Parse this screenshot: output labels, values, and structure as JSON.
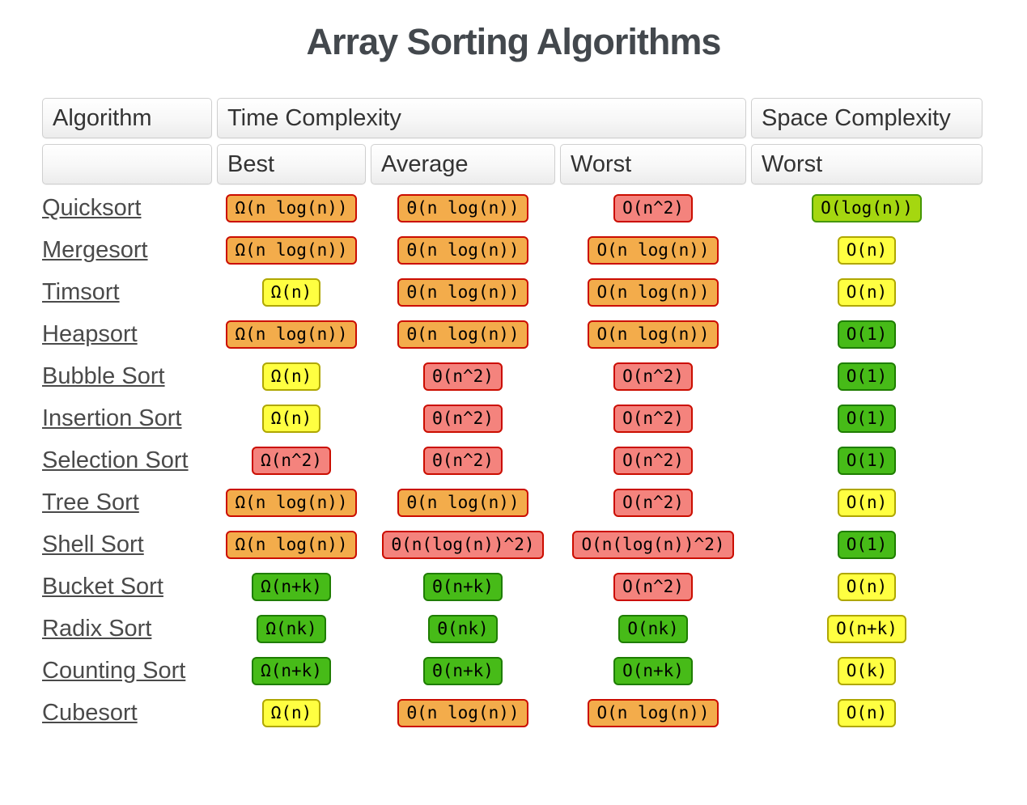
{
  "page": {
    "title": "Array Sorting Algorithms",
    "background": "#ffffff",
    "title_color": "#43484d"
  },
  "legend_colors": {
    "excellent": {
      "bg": "#47BB18",
      "border": "#1E7D00"
    },
    "good": {
      "bg": "#A5D710",
      "border": "#459704"
    },
    "fair": {
      "bg": "#FFFF41",
      "border": "#AFA700"
    },
    "bad": {
      "bg": "#F3AC4B",
      "border": "#CB0D00"
    },
    "horrible": {
      "bg": "#F4837D",
      "border": "#CB0D00"
    }
  },
  "table": {
    "headers": {
      "algorithm": "Algorithm",
      "time_complexity": "Time Complexity",
      "space_complexity": "Space Complexity",
      "best": "Best",
      "average": "Average",
      "worst": "Worst",
      "space_worst": "Worst"
    },
    "rows": [
      {
        "name": "Quicksort",
        "best": {
          "text": "Ω(n log(n))",
          "level": "bad"
        },
        "average": {
          "text": "Θ(n log(n))",
          "level": "bad"
        },
        "worst": {
          "text": "O(n^2)",
          "level": "horrible"
        },
        "space": {
          "text": "O(log(n))",
          "level": "good"
        }
      },
      {
        "name": "Mergesort",
        "best": {
          "text": "Ω(n log(n))",
          "level": "bad"
        },
        "average": {
          "text": "Θ(n log(n))",
          "level": "bad"
        },
        "worst": {
          "text": "O(n log(n))",
          "level": "bad"
        },
        "space": {
          "text": "O(n)",
          "level": "fair"
        }
      },
      {
        "name": "Timsort",
        "best": {
          "text": "Ω(n)",
          "level": "fair"
        },
        "average": {
          "text": "Θ(n log(n))",
          "level": "bad"
        },
        "worst": {
          "text": "O(n log(n))",
          "level": "bad"
        },
        "space": {
          "text": "O(n)",
          "level": "fair"
        }
      },
      {
        "name": "Heapsort",
        "best": {
          "text": "Ω(n log(n))",
          "level": "bad"
        },
        "average": {
          "text": "Θ(n log(n))",
          "level": "bad"
        },
        "worst": {
          "text": "O(n log(n))",
          "level": "bad"
        },
        "space": {
          "text": "O(1)",
          "level": "excellent"
        }
      },
      {
        "name": "Bubble Sort",
        "best": {
          "text": "Ω(n)",
          "level": "fair"
        },
        "average": {
          "text": "Θ(n^2)",
          "level": "horrible"
        },
        "worst": {
          "text": "O(n^2)",
          "level": "horrible"
        },
        "space": {
          "text": "O(1)",
          "level": "excellent"
        }
      },
      {
        "name": "Insertion Sort",
        "best": {
          "text": "Ω(n)",
          "level": "fair"
        },
        "average": {
          "text": "Θ(n^2)",
          "level": "horrible"
        },
        "worst": {
          "text": "O(n^2)",
          "level": "horrible"
        },
        "space": {
          "text": "O(1)",
          "level": "excellent"
        }
      },
      {
        "name": "Selection Sort",
        "best": {
          "text": "Ω(n^2)",
          "level": "horrible"
        },
        "average": {
          "text": "Θ(n^2)",
          "level": "horrible"
        },
        "worst": {
          "text": "O(n^2)",
          "level": "horrible"
        },
        "space": {
          "text": "O(1)",
          "level": "excellent"
        }
      },
      {
        "name": "Tree Sort",
        "best": {
          "text": "Ω(n log(n))",
          "level": "bad"
        },
        "average": {
          "text": "Θ(n log(n))",
          "level": "bad"
        },
        "worst": {
          "text": "O(n^2)",
          "level": "horrible"
        },
        "space": {
          "text": "O(n)",
          "level": "fair"
        }
      },
      {
        "name": "Shell Sort",
        "best": {
          "text": "Ω(n log(n))",
          "level": "bad"
        },
        "average": {
          "text": "Θ(n(log(n))^2)",
          "level": "horrible"
        },
        "worst": {
          "text": "O(n(log(n))^2)",
          "level": "horrible"
        },
        "space": {
          "text": "O(1)",
          "level": "excellent"
        }
      },
      {
        "name": "Bucket Sort",
        "best": {
          "text": "Ω(n+k)",
          "level": "excellent"
        },
        "average": {
          "text": "Θ(n+k)",
          "level": "excellent"
        },
        "worst": {
          "text": "O(n^2)",
          "level": "horrible"
        },
        "space": {
          "text": "O(n)",
          "level": "fair"
        }
      },
      {
        "name": "Radix Sort",
        "best": {
          "text": "Ω(nk)",
          "level": "excellent"
        },
        "average": {
          "text": "Θ(nk)",
          "level": "excellent"
        },
        "worst": {
          "text": "O(nk)",
          "level": "excellent"
        },
        "space": {
          "text": "O(n+k)",
          "level": "fair"
        }
      },
      {
        "name": "Counting Sort",
        "best": {
          "text": "Ω(n+k)",
          "level": "excellent"
        },
        "average": {
          "text": "Θ(n+k)",
          "level": "excellent"
        },
        "worst": {
          "text": "O(n+k)",
          "level": "excellent"
        },
        "space": {
          "text": "O(k)",
          "level": "fair"
        }
      },
      {
        "name": "Cubesort",
        "best": {
          "text": "Ω(n)",
          "level": "fair"
        },
        "average": {
          "text": "Θ(n log(n))",
          "level": "bad"
        },
        "worst": {
          "text": "O(n log(n))",
          "level": "bad"
        },
        "space": {
          "text": "O(n)",
          "level": "fair"
        }
      }
    ]
  }
}
